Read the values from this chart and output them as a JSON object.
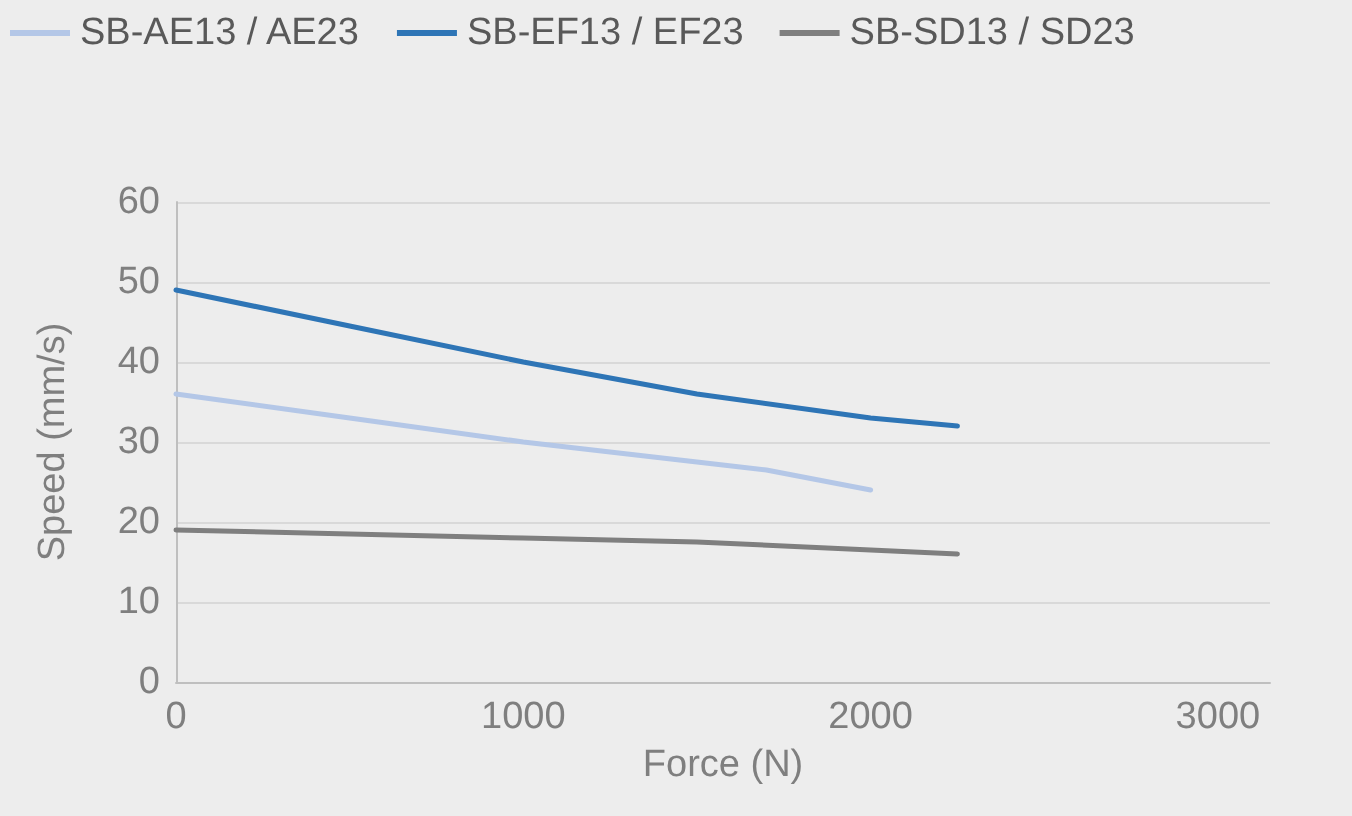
{
  "chart_data": {
    "type": "line",
    "xlabel": "Force (N)",
    "ylabel": "Speed (mm/s)",
    "xlim": [
      0,
      3150
    ],
    "xticks": [
      0,
      1000,
      2000,
      3000
    ],
    "ylim": [
      0,
      60
    ],
    "yticks": [
      0,
      10,
      20,
      30,
      40,
      50,
      60
    ],
    "grid": "y",
    "legend": "top",
    "marker": "none",
    "line_style": "solid",
    "series": [
      {
        "name": "SB-AE13 / AE23",
        "color": "#b4c7e7",
        "x": [
          0,
          500,
          1000,
          1500,
          1700,
          2000
        ],
        "values": [
          36,
          33,
          30,
          27.5,
          26.5,
          24
        ]
      },
      {
        "name": "SB-EF13 / EF23",
        "color": "#2e75b6",
        "x": [
          0,
          500,
          1000,
          1500,
          2000,
          2250
        ],
        "values": [
          49,
          44.5,
          40,
          36,
          33,
          32
        ]
      },
      {
        "name": "SB-SD13 / SD23",
        "color": "#7f7f7f",
        "x": [
          0,
          1000,
          1500,
          2000,
          2250
        ],
        "values": [
          19,
          18,
          17.5,
          16.5,
          16
        ]
      }
    ]
  }
}
